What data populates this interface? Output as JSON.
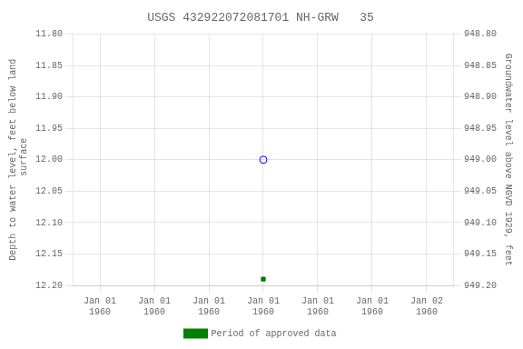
{
  "chart_data": {
    "type": "scatter",
    "title": "USGS 432922072081701 NH-GRW   35",
    "y_label": "Depth to water level, feet below land\n surface",
    "y2_label": "Groundwater level above NGVD 1929, feet",
    "categories": [
      "Jan 01\n1960",
      "Jan 01\n1960",
      "Jan 01\n1960",
      "Jan 01\n1960",
      "Jan 01\n1960",
      "Jan 01\n1960",
      "Jan 02\n1960"
    ],
    "series": [
      {
        "color": "#0000ff",
        "marker": "open_circle",
        "values": [
          null,
          null,
          null,
          12.0,
          null,
          null,
          null
        ]
      },
      {
        "name": "Period of approved data",
        "color": "#008000",
        "marker": "square",
        "values": [
          null,
          null,
          null,
          12.19,
          null,
          null,
          null
        ]
      }
    ],
    "ylim": [
      12.2,
      11.8
    ],
    "yticks": [
      {
        "value": 11.8,
        "label": "11.80"
      },
      11.85,
      {
        "value": 11.9,
        "label": "11.90"
      },
      11.95,
      {
        "value": 12.0,
        "label": "12.00"
      },
      12.05,
      {
        "value": 12.1,
        "label": "12.10"
      },
      12.15,
      {
        "value": 12.2,
        "label": "12.20"
      }
    ],
    "y2lim": [
      949.2,
      948.8
    ],
    "y2ticks": [
      {
        "value": 949.2,
        "label": "949.20"
      },
      949.15,
      {
        "value": 949.1,
        "label": "949.10"
      },
      949.05,
      {
        "value": 949.0,
        "label": "949.00"
      },
      948.95,
      {
        "value": 948.9,
        "label": "948.90"
      },
      948.85,
      {
        "value": 948.8,
        "label": "948.80"
      }
    ],
    "grid": true,
    "legend": "bottom"
  }
}
